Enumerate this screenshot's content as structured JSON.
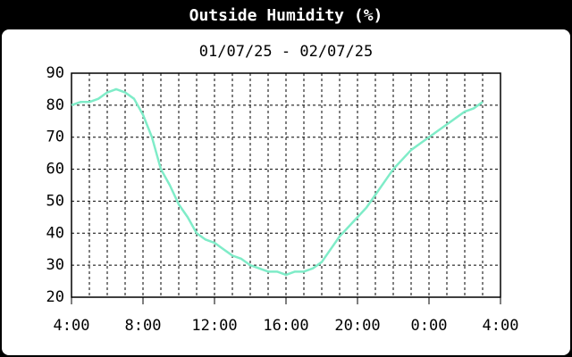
{
  "chart_data": {
    "type": "line",
    "title": "Outside Humidity (%)",
    "subtitle": "01/07/25 - 02/07/25",
    "x": [
      0,
      0.5,
      1,
      1.5,
      2,
      2.5,
      3,
      3.5,
      4,
      4.5,
      5,
      5.5,
      6,
      6.5,
      7,
      7.5,
      8,
      8.5,
      9,
      9.5,
      10,
      10.5,
      11,
      11.5,
      12,
      12.5,
      13,
      13.5,
      14,
      14.5,
      15,
      15.5,
      16,
      16.5,
      17,
      17.5,
      18,
      18.5,
      19,
      19.5,
      20,
      20.5,
      21,
      21.5,
      22,
      22.5,
      23
    ],
    "series": [
      {
        "color": "#7fecc8",
        "values": [
          80,
          81,
          81,
          82,
          84,
          85,
          84,
          82,
          77,
          70,
          60,
          55,
          49,
          45,
          40,
          38,
          37,
          35,
          33,
          32,
          30,
          29,
          28,
          28,
          27,
          28,
          28,
          29,
          31,
          35,
          39,
          42,
          45,
          48,
          52,
          56,
          60,
          63,
          66,
          68,
          70,
          72,
          74,
          76,
          78,
          79,
          81
        ]
      }
    ],
    "xlim": [
      0,
      24
    ],
    "xticks": [
      {
        "value": 0,
        "label": "4:00"
      },
      {
        "value": 4,
        "label": "8:00"
      },
      {
        "value": 8,
        "label": "12:00"
      },
      {
        "value": 12,
        "label": "16:00"
      },
      {
        "value": 16,
        "label": "20:00"
      },
      {
        "value": 20,
        "label": "0:00"
      },
      {
        "value": 24,
        "label": "4:00"
      }
    ],
    "xgrid": [
      1,
      2,
      3,
      4,
      5,
      6,
      7,
      8,
      9,
      10,
      11,
      12,
      13,
      14,
      15,
      16,
      17,
      18,
      19,
      20,
      21,
      22,
      23
    ],
    "ylim": [
      20,
      90
    ],
    "yticks": [
      20,
      30,
      40,
      50,
      60,
      70,
      80,
      90
    ],
    "grid": true
  }
}
